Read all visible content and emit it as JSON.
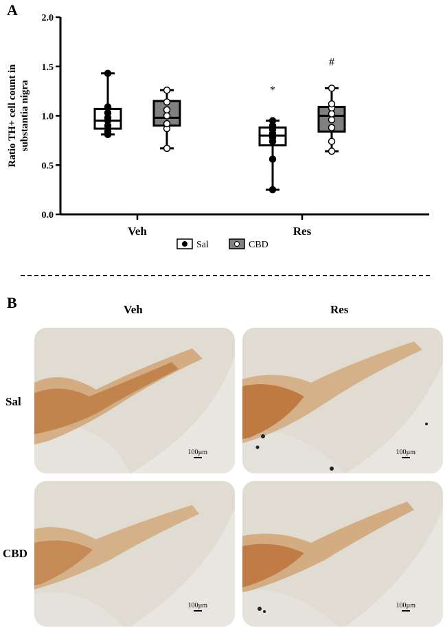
{
  "panel_a_label": "A",
  "panel_b_label": "B",
  "chart_data": {
    "type": "box",
    "ylabel_lines": [
      "Ratio TH+ cell count in",
      "substantia nigra"
    ],
    "xlabel": "",
    "ylim": [
      0,
      2.0
    ],
    "yticks": [
      "0.0",
      "0.5",
      "1.0",
      "1.5",
      "2.0"
    ],
    "grid": false,
    "legend_position": "bottom-center",
    "categories": [
      "Veh",
      "Res"
    ],
    "series": [
      {
        "name": "Sal",
        "box_color": "#ffffff",
        "point_color": "#000000",
        "boxes": [
          {
            "category": "Veh",
            "min": 0.81,
            "q1": 0.87,
            "median": 0.95,
            "q3": 1.07,
            "max": 1.43,
            "points": [
              0.81,
              0.84,
              0.9,
              0.95,
              0.98,
              1.03,
              1.09,
              1.43
            ]
          },
          {
            "category": "Res",
            "min": 0.25,
            "q1": 0.7,
            "median": 0.8,
            "q3": 0.88,
            "max": 0.95,
            "points": [
              0.25,
              0.56,
              0.74,
              0.78,
              0.82,
              0.86,
              0.9,
              0.95
            ]
          }
        ]
      },
      {
        "name": "CBD",
        "box_color": "#808080",
        "point_color": "#ffffff",
        "boxes": [
          {
            "category": "Veh",
            "min": 0.67,
            "q1": 0.9,
            "median": 0.98,
            "q3": 1.15,
            "max": 1.26,
            "points": [
              0.67,
              0.87,
              0.92,
              1.0,
              1.06,
              1.14,
              1.26
            ]
          },
          {
            "category": "Res",
            "min": 0.64,
            "q1": 0.84,
            "median": 1.0,
            "q3": 1.09,
            "max": 1.28,
            "points": [
              0.64,
              0.74,
              0.88,
              0.96,
              1.02,
              1.08,
              1.12,
              1.28
            ]
          }
        ]
      }
    ],
    "annotations": [
      {
        "text": "*",
        "category": "Res",
        "series": "Sal",
        "y": 1.27
      },
      {
        "text": "#",
        "category": "Res",
        "series": "CBD",
        "y": 1.55
      }
    ]
  },
  "panel_b": {
    "columns": [
      "Veh",
      "Res"
    ],
    "rows": [
      "Sal",
      "CBD"
    ],
    "scale_label": "100µm"
  }
}
